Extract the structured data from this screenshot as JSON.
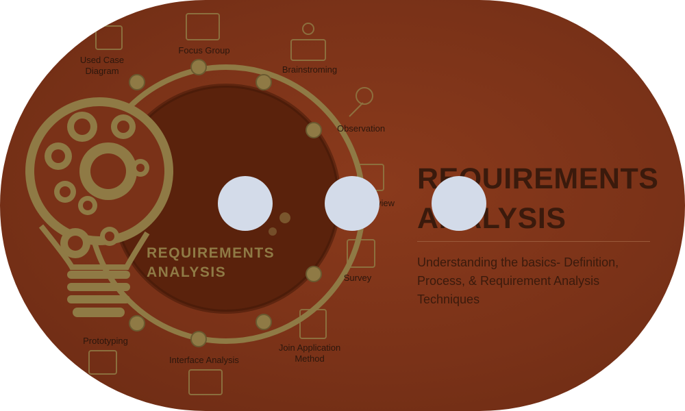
{
  "diagram": {
    "bulb_title_line1": "REQUIREMENTS",
    "bulb_title_line2": "ANALYSIS",
    "techniques": {
      "used_case": "Used Case Diagram",
      "focus_group": "Focus Group",
      "brainstorming": "Brainstroming",
      "observation": "Observation",
      "interview": "view",
      "survey": "Survey",
      "jad": "Join Application Method",
      "interface": "Interface Analysis",
      "prototyping": "Prototyping"
    }
  },
  "hero": {
    "title_line1": "REQUIREMENTS",
    "title_line2": "ANALYSIS",
    "subtitle": "Understanding the basics- Definition, Process, & Requirement Analysis Techniques"
  },
  "loading_indicator": {
    "dot_color": "#d3dbe9",
    "dot_count": 3
  },
  "colors": {
    "overlay": "#7a3218",
    "ring": "#8f7a45",
    "text_dark": "#3a1a0c"
  }
}
